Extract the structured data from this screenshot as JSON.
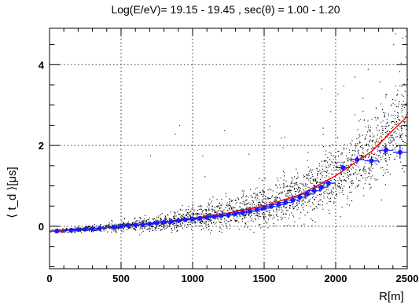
{
  "chart_data": {
    "type": "scatter",
    "title": "Log(E/eV)= 19.15 - 19.45 , sec(θ) = 1.00 - 1.20",
    "xlabel": "R[m]",
    "ylabel": "⟨ t_d ⟩[μs]",
    "xlim": [
      0,
      2500
    ],
    "ylim": [
      -1.05,
      4.9
    ],
    "x_ticks": [
      0,
      500,
      1000,
      1500,
      2000,
      2500
    ],
    "y_ticks": [
      0,
      2,
      4
    ],
    "grid": true,
    "colors": {
      "scatter": "#000000",
      "profile": "#1a1aff",
      "fit": "#ff0000"
    },
    "series": [
      {
        "type": "scatter",
        "style": "dots",
        "description": "individual station values",
        "x_range": [
          0,
          2500
        ],
        "points_count": 6000
      },
      {
        "type": "profile",
        "style": "markers-with-errorbars",
        "x": [
          50,
          150,
          200,
          250,
          300,
          350,
          450,
          500,
          550,
          600,
          650,
          700,
          750,
          800,
          850,
          900,
          950,
          1000,
          1050,
          1100,
          1150,
          1200,
          1250,
          1300,
          1350,
          1400,
          1450,
          1500,
          1550,
          1600,
          1650,
          1700,
          1750,
          1800,
          1850,
          1900,
          1950,
          2050,
          2150,
          2250,
          2350,
          2450
        ],
        "y": [
          -0.12,
          -0.1,
          -0.08,
          -0.07,
          -0.06,
          -0.05,
          -0.02,
          0.0,
          0.02,
          0.03,
          0.04,
          0.06,
          0.08,
          0.1,
          0.12,
          0.14,
          0.16,
          0.18,
          0.2,
          0.22,
          0.24,
          0.26,
          0.28,
          0.31,
          0.34,
          0.37,
          0.41,
          0.45,
          0.49,
          0.54,
          0.59,
          0.65,
          0.72,
          0.8,
          0.88,
          0.97,
          1.07,
          1.45,
          1.65,
          1.62,
          1.88,
          1.83
        ],
        "yerr": [
          0.05,
          0.04,
          0.04,
          0.03,
          0.03,
          0.03,
          0.03,
          0.03,
          0.03,
          0.03,
          0.03,
          0.03,
          0.03,
          0.03,
          0.03,
          0.03,
          0.03,
          0.03,
          0.03,
          0.03,
          0.03,
          0.03,
          0.03,
          0.03,
          0.03,
          0.03,
          0.03,
          0.03,
          0.03,
          0.03,
          0.04,
          0.04,
          0.04,
          0.05,
          0.05,
          0.06,
          0.06,
          0.08,
          0.1,
          0.12,
          0.14,
          0.16
        ]
      },
      {
        "type": "line",
        "style": "fit",
        "x_range": [
          0,
          2500
        ],
        "description": "fit curve",
        "points": [
          [
            0,
            -0.12
          ],
          [
            250,
            -0.07
          ],
          [
            500,
            0.0
          ],
          [
            750,
            0.08
          ],
          [
            1000,
            0.2
          ],
          [
            1250,
            0.33
          ],
          [
            1500,
            0.5
          ],
          [
            1750,
            0.78
          ],
          [
            2000,
            1.25
          ],
          [
            2250,
            1.85
          ],
          [
            2500,
            2.72
          ]
        ]
      }
    ]
  }
}
